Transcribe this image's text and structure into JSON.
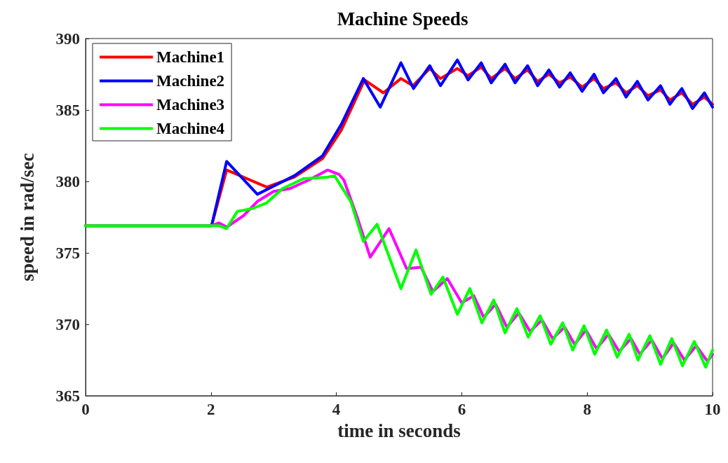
{
  "chart_data": {
    "type": "line",
    "title": "Machine Speeds",
    "xlabel": "time in seconds",
    "ylabel": "speed in rad/sec",
    "xlim": [
      0,
      10
    ],
    "xticks": [
      0,
      2,
      4,
      6,
      8,
      10
    ],
    "ylim": [
      365,
      390
    ],
    "yticks": [
      365,
      370,
      375,
      380,
      385,
      390
    ],
    "grid": false,
    "legend": "top left",
    "marker": "none",
    "line_style": "solid",
    "series": [
      {
        "name": "Machine1",
        "color": "#ff0000",
        "x": [
          0,
          2.01,
          2.25,
          2.89,
          3.33,
          3.78,
          4.08,
          4.45,
          4.75,
          5.03,
          5.22,
          5.49,
          5.66,
          5.93,
          6.1,
          6.31,
          6.47,
          6.69,
          6.85,
          7.05,
          7.21,
          7.39,
          7.56,
          7.73,
          7.92,
          8.11,
          8.26,
          8.46,
          8.62,
          8.8,
          8.97,
          9.17,
          9.32,
          9.51,
          9.68,
          9.87,
          10
        ],
        "values": [
          376.9,
          376.9,
          380.8,
          379.6,
          380.3,
          381.6,
          383.6,
          387.1,
          386.2,
          387.2,
          386.7,
          387.9,
          387.2,
          387.9,
          387.4,
          388,
          387.2,
          387.9,
          387.2,
          387.8,
          387,
          387.5,
          386.9,
          387.3,
          386.6,
          387.2,
          386.5,
          386.9,
          386.2,
          386.7,
          386,
          386.4,
          385.7,
          386.2,
          385.4,
          385.9,
          385.4
        ]
      },
      {
        "name": "Machine2",
        "color": "#0000ff",
        "x": [
          0,
          2.01,
          2.25,
          2.74,
          3.33,
          3.78,
          4.08,
          4.43,
          4.7,
          5.03,
          5.23,
          5.49,
          5.66,
          5.93,
          6.1,
          6.31,
          6.47,
          6.69,
          6.85,
          7.05,
          7.21,
          7.39,
          7.56,
          7.73,
          7.92,
          8.11,
          8.26,
          8.46,
          8.62,
          8.8,
          8.97,
          9.17,
          9.32,
          9.51,
          9.68,
          9.87,
          10
        ],
        "values": [
          376.9,
          376.9,
          381.4,
          379.1,
          380.4,
          381.8,
          384,
          387.2,
          385.2,
          388.3,
          386.5,
          388.1,
          386.7,
          388.5,
          387.1,
          388.3,
          386.9,
          388.2,
          386.9,
          388.1,
          386.7,
          387.8,
          386.6,
          387.6,
          386.3,
          387.5,
          386.2,
          387.2,
          385.9,
          387,
          385.7,
          386.7,
          385.4,
          386.5,
          385.1,
          386.2,
          385.2
        ]
      },
      {
        "name": "Machine3",
        "color": "#ff00ff",
        "x": [
          0,
          2.01,
          2.13,
          2.25,
          2.52,
          2.74,
          3,
          3.26,
          3.56,
          3.86,
          4.04,
          4.12,
          4.34,
          4.54,
          4.84,
          5.12,
          5.35,
          5.54,
          5.77,
          6,
          6.19,
          6.35,
          6.54,
          6.72,
          6.91,
          7.09,
          7.28,
          7.45,
          7.64,
          7.8,
          7.98,
          8.15,
          8.34,
          8.51,
          8.7,
          8.84,
          9.03,
          9.2,
          9.38,
          9.55,
          9.74,
          9.92,
          10
        ],
        "values": [
          376.9,
          376.9,
          377.1,
          376.8,
          377.6,
          378.6,
          379.3,
          379.5,
          380.1,
          380.8,
          380.5,
          380.1,
          377.4,
          374.7,
          376.7,
          373.9,
          374,
          372.3,
          373.2,
          371.5,
          372,
          370.5,
          371.4,
          369.8,
          370.8,
          369.5,
          370.3,
          369,
          369.8,
          368.6,
          369.6,
          368.3,
          369.3,
          368.1,
          369,
          367.9,
          368.9,
          367.6,
          368.7,
          367.5,
          368.5,
          367.4,
          367.9
        ]
      },
      {
        "name": "Machine4",
        "color": "#00ff00",
        "x": [
          0,
          2.01,
          2.13,
          2.25,
          2.42,
          2.66,
          2.89,
          3.14,
          3.48,
          3.86,
          3.97,
          4.23,
          4.43,
          4.65,
          5.03,
          5.27,
          5.51,
          5.7,
          5.93,
          6.13,
          6.32,
          6.51,
          6.69,
          6.88,
          7.06,
          7.25,
          7.42,
          7.61,
          7.77,
          7.95,
          8.12,
          8.31,
          8.48,
          8.67,
          8.81,
          9,
          9.17,
          9.35,
          9.52,
          9.71,
          9.89,
          10
        ],
        "values": [
          376.9,
          376.9,
          376.9,
          376.7,
          377.9,
          378.1,
          378.5,
          379.5,
          380.2,
          380.3,
          380.4,
          378.6,
          375.8,
          377,
          372.5,
          375.2,
          372.1,
          373.3,
          370.7,
          372.5,
          370.1,
          371.7,
          369.4,
          371.1,
          369.1,
          370.6,
          368.6,
          370.1,
          368.2,
          369.9,
          367.9,
          369.6,
          367.7,
          369.3,
          367.5,
          369.2,
          367.2,
          369,
          367.1,
          368.8,
          367,
          368.2
        ]
      }
    ]
  }
}
